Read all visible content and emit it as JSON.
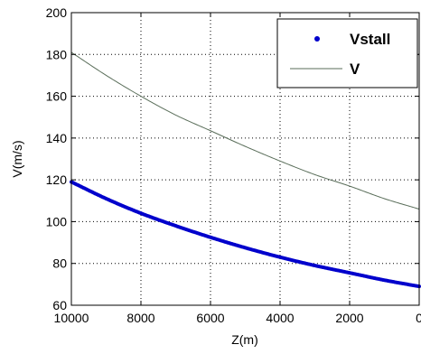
{
  "chart_data": {
    "type": "line",
    "xlabel": "Z(m)",
    "ylabel": "V(m/s)",
    "xlim": [
      10000,
      0
    ],
    "ylim": [
      60,
      200
    ],
    "x_reversed": true,
    "grid": true,
    "grid_style": "dotted",
    "legend_position": "top-right",
    "x_ticks": [
      10000,
      8000,
      6000,
      4000,
      2000,
      0
    ],
    "y_ticks": [
      60,
      80,
      100,
      120,
      140,
      160,
      180,
      200
    ],
    "x": [
      10000,
      9000,
      8000,
      7000,
      6000,
      5000,
      4000,
      3000,
      2000,
      1000,
      0
    ],
    "series": [
      {
        "name": "Vstall",
        "style": "markers",
        "marker": "dot",
        "color": "#0000cc",
        "values": [
          119,
          111,
          104,
          98,
          92.5,
          87.5,
          83,
          79,
          75.5,
          72,
          69
        ]
      },
      {
        "name": "V",
        "style": "line",
        "color": "#5a6e5a",
        "values": [
          181,
          170,
          160,
          151,
          143.5,
          136,
          129,
          122.5,
          117,
          111,
          106
        ]
      }
    ]
  }
}
